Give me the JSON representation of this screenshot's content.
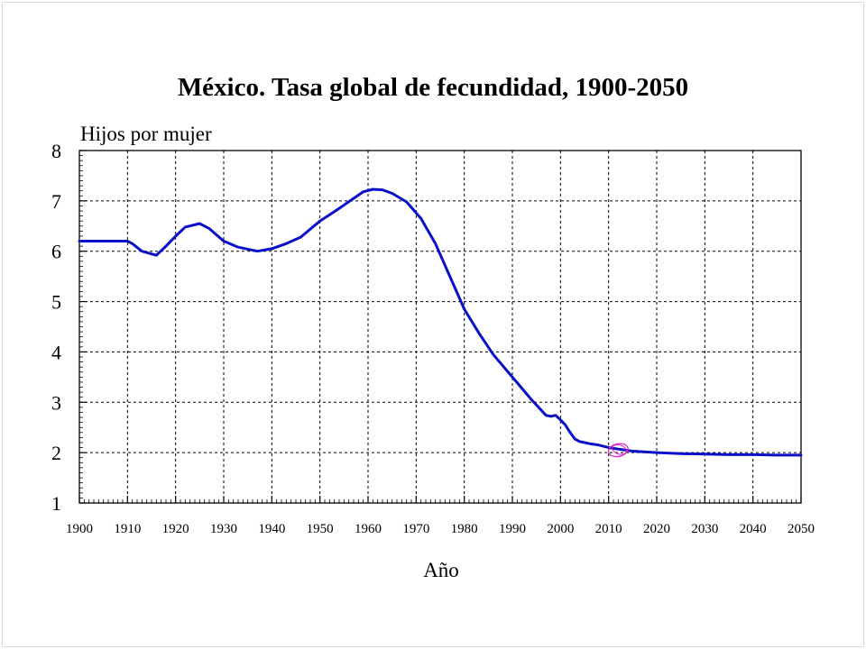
{
  "chart_data": {
    "type": "line",
    "title": "México. Tasa global de fecundidad, 1900-2050",
    "xlabel": "Año",
    "ylabel": "Hijos por mujer",
    "xlim": [
      1900,
      2050
    ],
    "ylim": [
      1,
      8
    ],
    "x_ticks": [
      "1900",
      "1910",
      "1920",
      "1930",
      "1940",
      "1950",
      "1960",
      "1970",
      "1980",
      "1990",
      "2000",
      "2010",
      "2020",
      "2030",
      "2040",
      "2050"
    ],
    "y_ticks": [
      "1",
      "2",
      "3",
      "4",
      "5",
      "6",
      "7",
      "8"
    ],
    "grid": true,
    "series": [
      {
        "color": "#0a10c8",
        "x": [
          1900,
          1905,
          1910,
          1911,
          1913,
          1916,
          1918,
          1920,
          1922,
          1925,
          1927,
          1930,
          1933,
          1937,
          1940,
          1943,
          1946,
          1950,
          1954,
          1957,
          1959,
          1961,
          1963,
          1965,
          1968,
          1971,
          1974,
          1977,
          1980,
          1983,
          1986,
          1990,
          1994,
          1997,
          1998,
          1999,
          2000,
          2001,
          2002,
          2003,
          2004,
          2006,
          2008,
          2010,
          2012,
          2015,
          2020,
          2025,
          2030,
          2035,
          2040,
          2045,
          2050
        ],
        "y": [
          6.2,
          6.2,
          6.2,
          6.15,
          6.0,
          5.92,
          6.1,
          6.3,
          6.48,
          6.55,
          6.45,
          6.2,
          6.08,
          6.0,
          6.05,
          6.15,
          6.28,
          6.6,
          6.85,
          7.05,
          7.18,
          7.23,
          7.22,
          7.15,
          6.98,
          6.65,
          6.15,
          5.5,
          4.85,
          4.38,
          3.95,
          3.5,
          3.05,
          2.74,
          2.72,
          2.74,
          2.65,
          2.55,
          2.4,
          2.27,
          2.22,
          2.18,
          2.15,
          2.1,
          2.07,
          2.03,
          2.0,
          1.98,
          1.97,
          1.96,
          1.96,
          1.95,
          1.95
        ]
      }
    ],
    "annotations": [
      {
        "type": "circled-marker",
        "x": 2012,
        "y": 2.05,
        "color": "#e020c8"
      }
    ]
  }
}
